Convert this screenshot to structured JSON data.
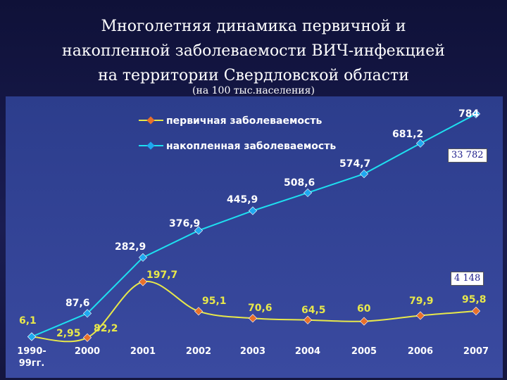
{
  "slide": {
    "title_lines": [
      "Многолетняя динамика первичной и",
      "накопленной заболеваемости ВИЧ-инфекцией",
      "на территории Свердловской области"
    ],
    "subtitle": "(на 100 тыс.населения)",
    "box_accumulated_total": "33 782",
    "box_primary_total": "4 148"
  },
  "chart_data": {
    "type": "line",
    "categories": [
      "1990-99гг.",
      "2000",
      "2001",
      "2002",
      "2003",
      "2004",
      "2005",
      "2006",
      "2007"
    ],
    "series": [
      {
        "name": "первичная заболеваемость",
        "values": [
          6.1,
          2.95,
          197.7,
          95.1,
          70.6,
          64.5,
          60,
          79.9,
          95.8
        ],
        "labels": [
          "6,1",
          "2,95",
          "197,7",
          "95,1",
          "70,6",
          "64,5",
          "60",
          "79,9",
          "95,8"
        ],
        "color": "#e8e84a",
        "marker_color": "#e8702a"
      },
      {
        "name": "накопленная заболеваемость",
        "values": [
          6.1,
          87.6,
          282.9,
          376.9,
          445.9,
          508.6,
          574.7,
          681.2,
          784
        ],
        "labels": [
          "6,1",
          "87,6",
          "282,9",
          "376,9",
          "445,9",
          "508,6",
          "574,7",
          "681,2",
          "784"
        ],
        "color": "#1ee0f0",
        "marker_color": "#1ea8f0"
      }
    ],
    "extra_label": "82,2",
    "ylim": [
      0,
      850
    ],
    "grid": false,
    "legend_position": "top-left",
    "plot_bg": "#2a3a86"
  }
}
